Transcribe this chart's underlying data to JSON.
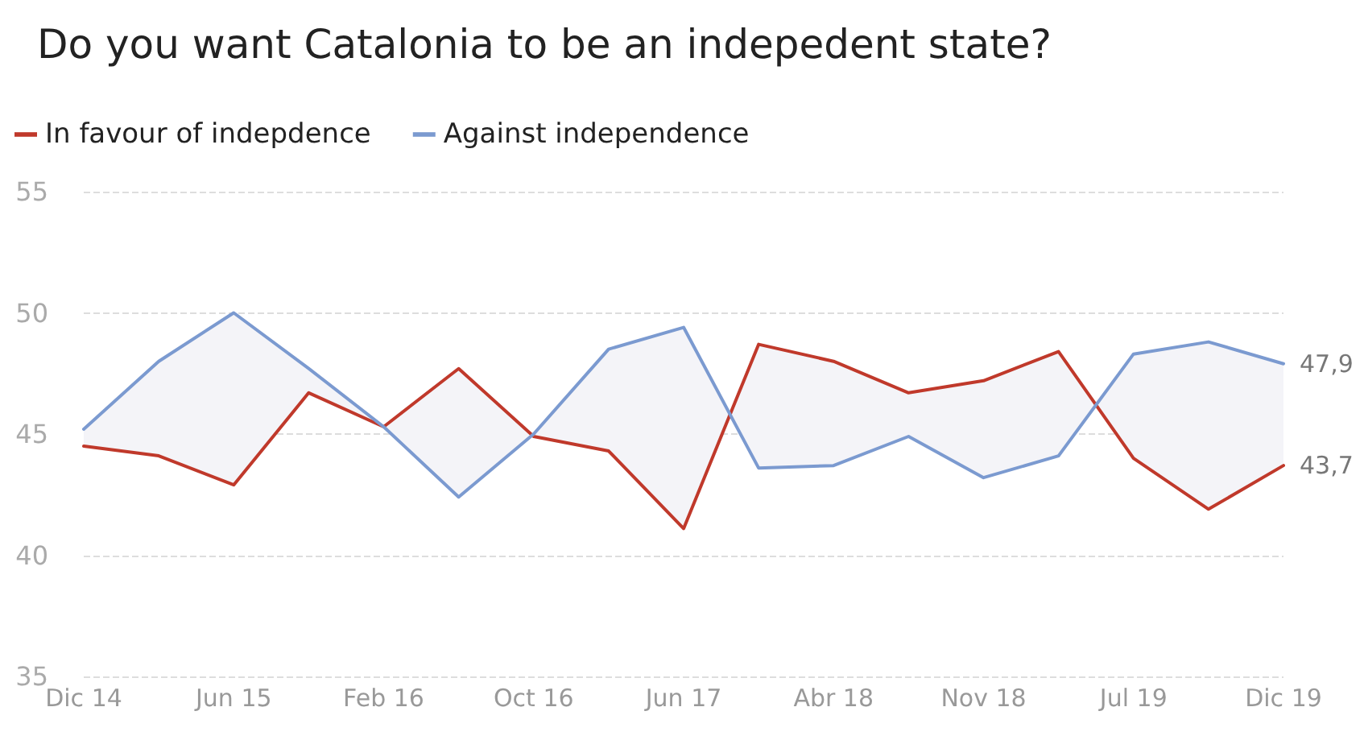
{
  "chart_data": {
    "type": "line",
    "title": "Do you want Catalonia to be an indepedent state?",
    "categories": [
      "Dic 14",
      null,
      "Jun 15",
      null,
      "Feb 16",
      null,
      "Oct 16",
      null,
      "Jun 17",
      null,
      "Abr 18",
      null,
      "Nov 18",
      null,
      "Jul 19",
      null,
      "Dic 19"
    ],
    "series": [
      {
        "name": "In favour of indepdence",
        "color": "#c0392b",
        "values": [
          44.5,
          44.1,
          42.9,
          46.7,
          45.3,
          47.7,
          44.9,
          44.3,
          41.1,
          48.7,
          48.0,
          46.7,
          47.2,
          48.4,
          44.0,
          41.9,
          43.7
        ],
        "value_labels": [
          null,
          null,
          null,
          null,
          null,
          null,
          null,
          null,
          null,
          null,
          null,
          null,
          null,
          null,
          null,
          null,
          "43,7"
        ]
      },
      {
        "name": "Against independence",
        "color": "#7b9ad0",
        "values": [
          45.2,
          48.0,
          50.0,
          47.7,
          45.3,
          42.4,
          45.0,
          48.5,
          49.4,
          43.6,
          43.7,
          44.9,
          43.2,
          44.1,
          48.3,
          48.8,
          47.9
        ],
        "upper": [
          45.2,
          48.0,
          50.0,
          47.7,
          45.3,
          42.4,
          45.0,
          48.5,
          49.4,
          43.6,
          43.7,
          44.9,
          43.2,
          44.1,
          48.3,
          48.8,
          47.9
        ],
        "lower": [
          44.5,
          44.1,
          42.9,
          46.7,
          45.3,
          47.7,
          44.9,
          44.3,
          41.1,
          48.7,
          48.0,
          46.7,
          47.2,
          48.4,
          44.0,
          41.9,
          43.7
        ],
        "value_labels": [
          null,
          null,
          null,
          null,
          null,
          null,
          null,
          null,
          null,
          null,
          null,
          null,
          null,
          null,
          null,
          null,
          "47,9"
        ]
      }
    ],
    "ylim": [
      35,
      55
    ],
    "yticks": [
      35,
      40,
      45,
      50,
      55
    ],
    "grid": "y",
    "legend": "top left",
    "marker": "none",
    "line_style": "solid"
  }
}
